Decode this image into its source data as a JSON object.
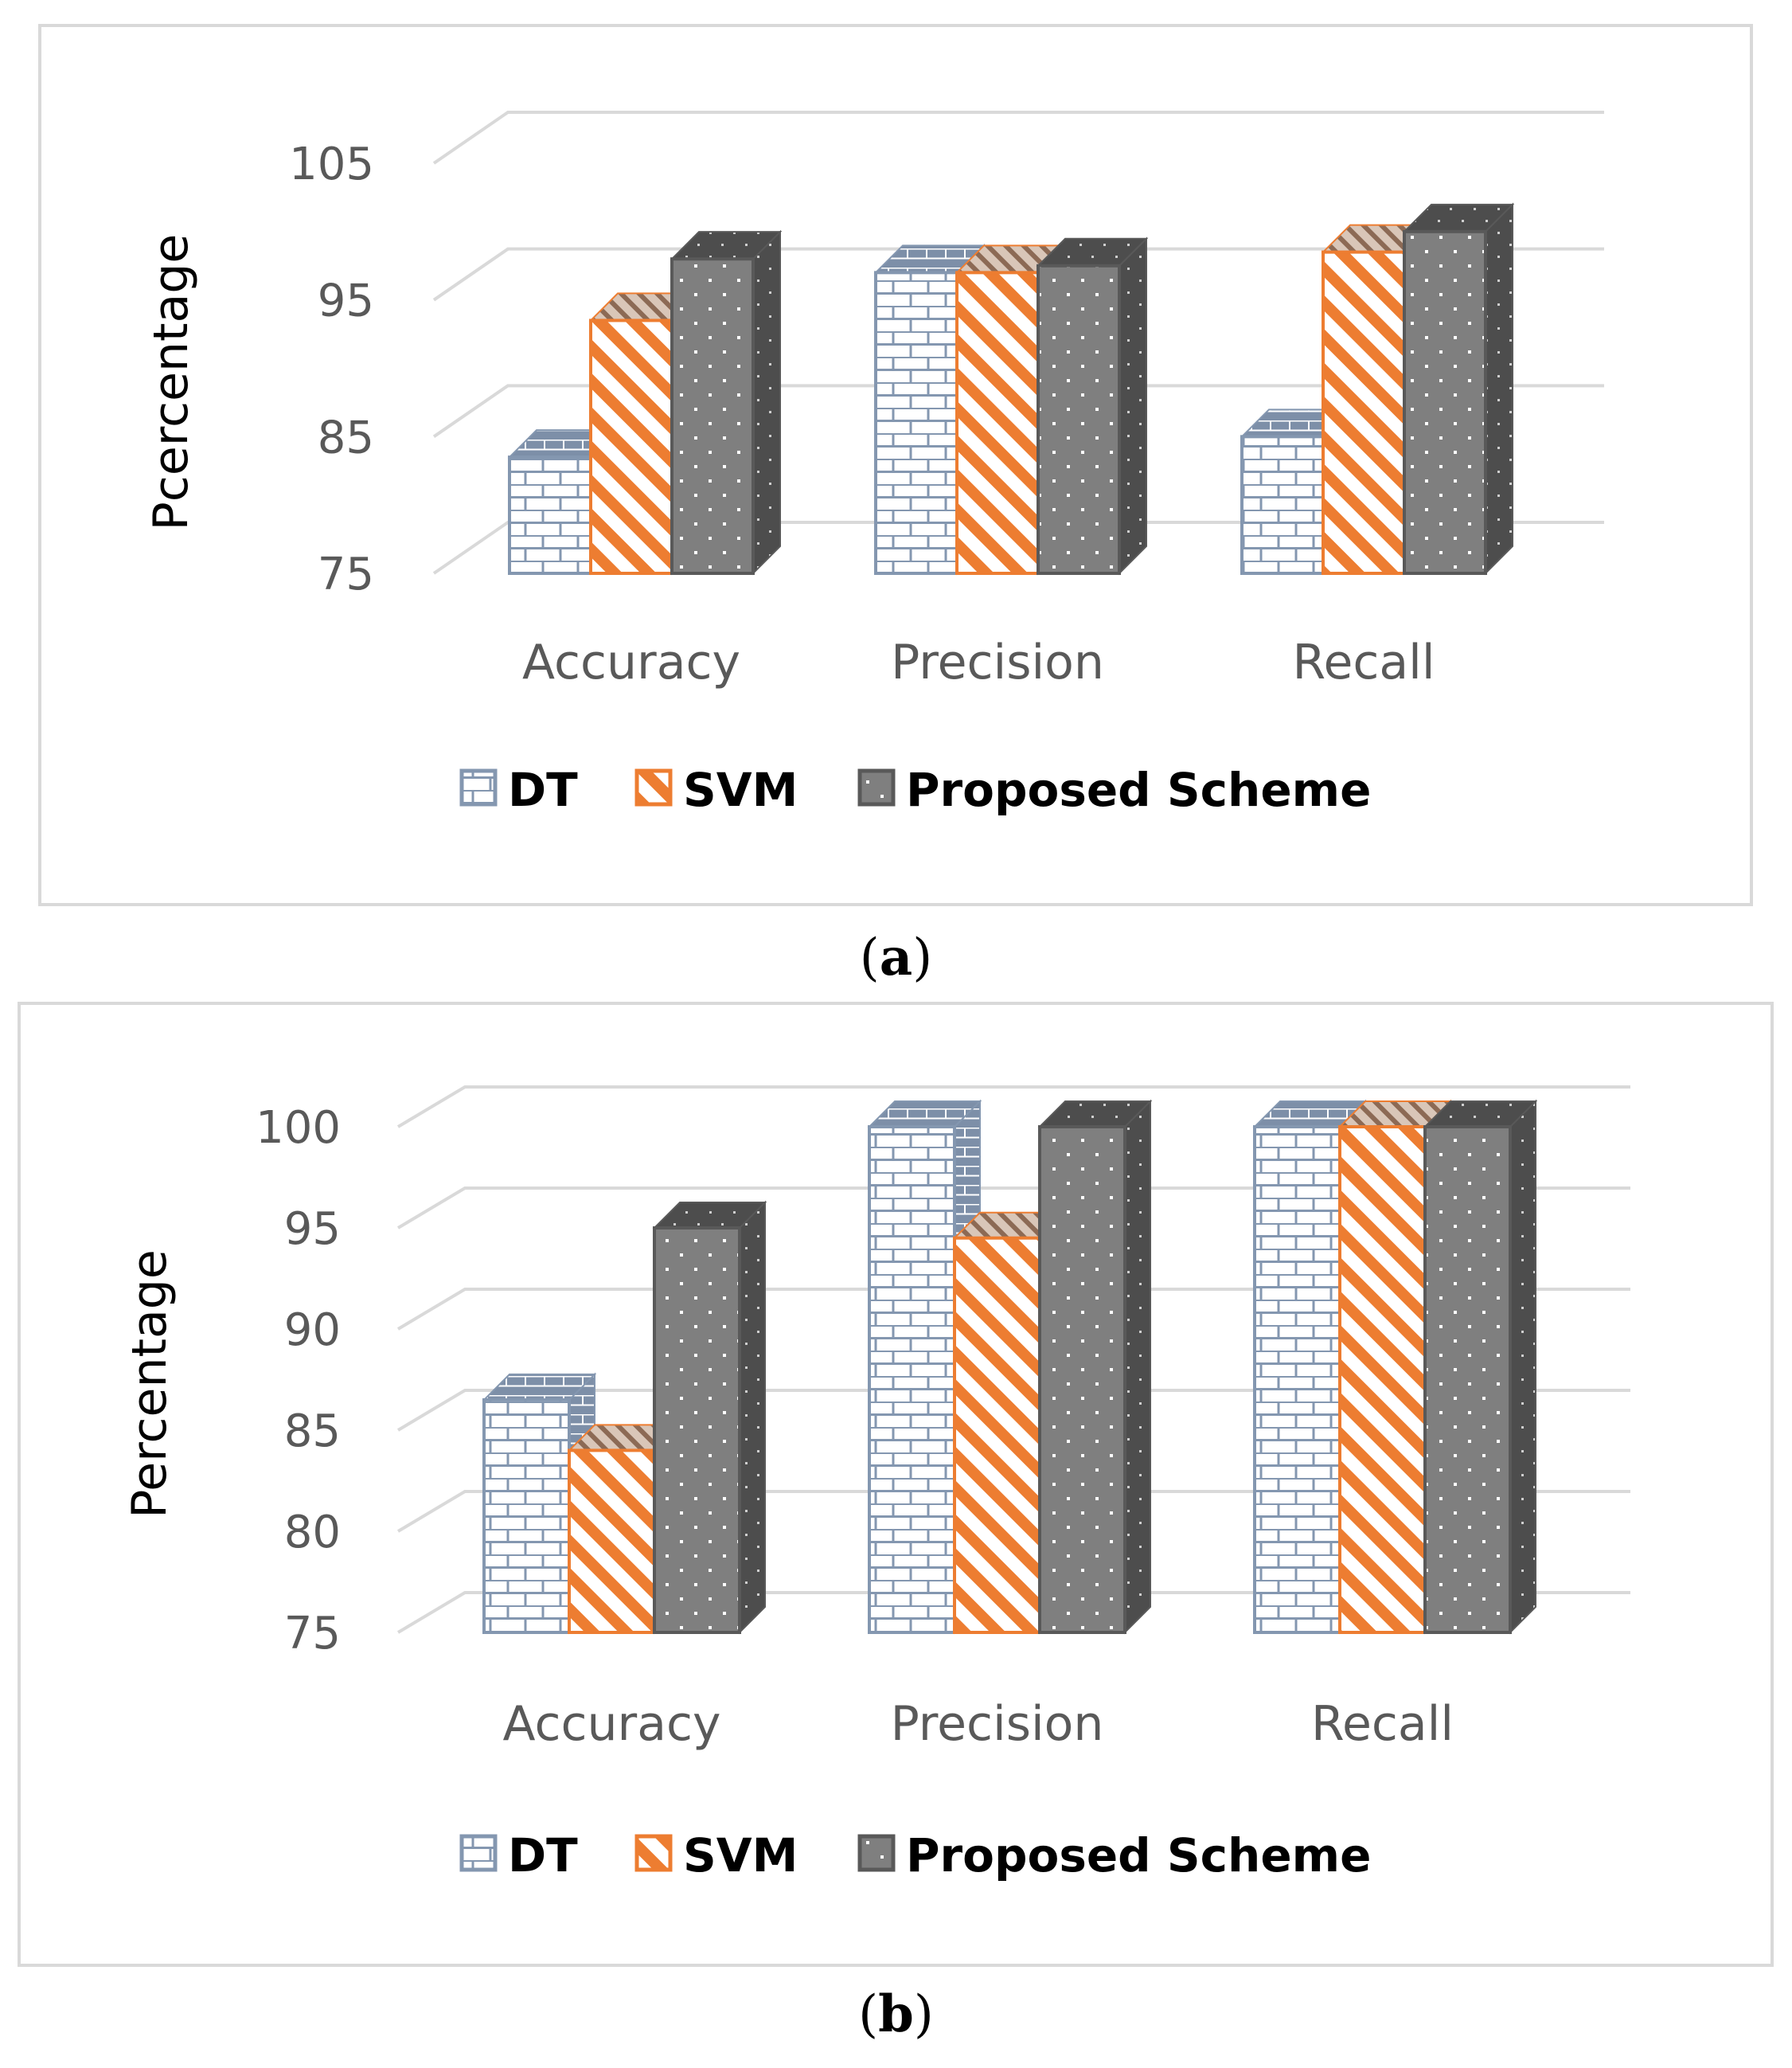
{
  "chart_data": [
    {
      "type": "bar",
      "panel_label": "a",
      "title": "",
      "xlabel": "",
      "ylabel": "Pcercentage",
      "ylim": [
        75,
        105
      ],
      "yticks": [
        75,
        85,
        95,
        105
      ],
      "categories": [
        "Accuracy",
        "Precision",
        "Recall"
      ],
      "series": [
        {
          "name": "DT",
          "values": [
            83.5,
            97,
            85
          ]
        },
        {
          "name": "SVM",
          "values": [
            93.5,
            97,
            98.5
          ]
        },
        {
          "name": "Proposed Scheme",
          "values": [
            98,
            97.5,
            100
          ]
        }
      ],
      "grid": true,
      "legend": "bottom",
      "colors": {
        "DT": "#8497b0",
        "SVM": "#ed7d31",
        "Proposed Scheme": "#7f7f7f"
      }
    },
    {
      "type": "bar",
      "panel_label": "b",
      "title": "",
      "xlabel": "",
      "ylabel": "Percentage",
      "ylim": [
        75,
        100
      ],
      "yticks": [
        75,
        80,
        85,
        90,
        95,
        100
      ],
      "categories": [
        "Accuracy",
        "Precision",
        "Recall"
      ],
      "series": [
        {
          "name": "DT",
          "values": [
            86.5,
            100,
            100
          ]
        },
        {
          "name": "SVM",
          "values": [
            84,
            94.5,
            100
          ]
        },
        {
          "name": "Proposed Scheme",
          "values": [
            95,
            100,
            100
          ]
        }
      ],
      "grid": true,
      "legend": "bottom",
      "colors": {
        "DT": "#8497b0",
        "SVM": "#ed7d31",
        "Proposed Scheme": "#7f7f7f"
      }
    }
  ]
}
